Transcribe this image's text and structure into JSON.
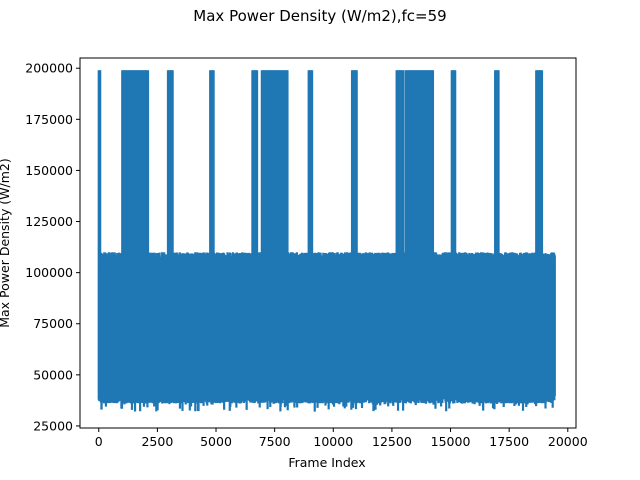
{
  "chart_data": {
    "type": "line",
    "title": "Max Power Density (W/m2),fc=59",
    "xlabel": "Frame Index",
    "ylabel": "Max Power Density (W/m2)",
    "xlim": [
      -800,
      20350
    ],
    "ylim": [
      24000,
      205000
    ],
    "xticks": [
      0,
      2500,
      5000,
      7500,
      10000,
      12500,
      15000,
      17500,
      20000
    ],
    "xtick_labels": [
      "0",
      "2500",
      "5000",
      "7500",
      "10000",
      "12500",
      "15000",
      "17500",
      "20000"
    ],
    "yticks": [
      25000,
      50000,
      75000,
      100000,
      125000,
      150000,
      175000,
      200000
    ],
    "ytick_labels": [
      "25000",
      "50000",
      "75000",
      "100000",
      "125000",
      "150000",
      "175000",
      "200000"
    ],
    "grid": false,
    "color": "#1f77b4",
    "series": [
      {
        "x_range": [
          0,
          19450
        ],
        "baseline_band": [
          38000,
          108000
        ],
        "min_value": 32000,
        "max_value": 199000,
        "saturation_value": 199000,
        "saturated_segments": [
          [
            0,
            60
          ],
          [
            1000,
            2100
          ],
          [
            2950,
            3150
          ],
          [
            4750,
            4900
          ],
          [
            6550,
            6750
          ],
          [
            6950,
            8050
          ],
          [
            8950,
            9100
          ],
          [
            10800,
            11000
          ],
          [
            12700,
            13000
          ],
          [
            13100,
            14250
          ],
          [
            15050,
            15200
          ],
          [
            16900,
            17050
          ],
          [
            18650,
            18900
          ]
        ]
      }
    ]
  }
}
